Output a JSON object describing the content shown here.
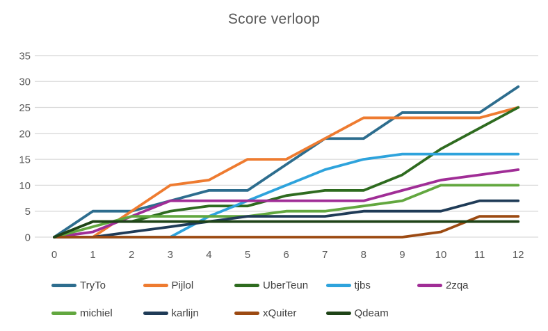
{
  "title": "Score verloop",
  "ui_colors": {
    "title_text": "#595959",
    "axis_text": "#595959",
    "legend_text": "#404040",
    "gridline": "#D9D9D9",
    "background": "#FFFFFF"
  },
  "chart_data": {
    "type": "line",
    "title": "Score verloop",
    "xlabel": "",
    "ylabel": "",
    "x": [
      0,
      1,
      2,
      3,
      4,
      5,
      6,
      7,
      8,
      9,
      10,
      11,
      12
    ],
    "x_tick_labels": [
      "0",
      "1",
      "2",
      "3",
      "4",
      "5",
      "6",
      "7",
      "8",
      "9",
      "10",
      "11",
      "12"
    ],
    "y_ticks": [
      0,
      5,
      10,
      15,
      20,
      25,
      30,
      35
    ],
    "y_tick_labels": [
      "0",
      "5",
      "10",
      "15",
      "20",
      "25",
      "30",
      "35"
    ],
    "ylim": [
      0,
      35
    ],
    "grid": "horizontal",
    "legend_position": "bottom",
    "series": [
      {
        "name": "TryTo",
        "color": "#2D6D8E",
        "values": [
          0,
          5,
          5,
          7,
          9,
          9,
          14,
          19,
          19,
          24,
          24,
          24,
          29
        ]
      },
      {
        "name": "Pijlol",
        "color": "#EE7B30",
        "values": [
          0,
          0,
          5,
          10,
          11,
          15,
          15,
          19,
          23,
          23,
          23,
          23,
          25
        ]
      },
      {
        "name": "UberTeun",
        "color": "#2E6B1F",
        "values": [
          0,
          3,
          3,
          5,
          6,
          6,
          8,
          9,
          9,
          12,
          17,
          21,
          25
        ]
      },
      {
        "name": "tjbs",
        "color": "#2EA3DC",
        "values": [
          0,
          0,
          0,
          0,
          4,
          7,
          10,
          13,
          15,
          16,
          16,
          16,
          16
        ]
      },
      {
        "name": "2zqa",
        "color": "#A02D96",
        "values": [
          0,
          1,
          4,
          7,
          7,
          7,
          7,
          7,
          7,
          9,
          11,
          12,
          13
        ]
      },
      {
        "name": "michiel",
        "color": "#62A73F",
        "values": [
          0,
          2,
          4,
          4,
          4,
          4,
          5,
          5,
          6,
          7,
          10,
          10,
          10
        ]
      },
      {
        "name": "karlijn",
        "color": "#1F3B57",
        "values": [
          0,
          0,
          1,
          2,
          3,
          4,
          4,
          4,
          5,
          5,
          5,
          7,
          7
        ]
      },
      {
        "name": "xQuiter",
        "color": "#9C4A12",
        "values": [
          0,
          0,
          0,
          0,
          0,
          0,
          0,
          0,
          0,
          0,
          1,
          4,
          4
        ]
      },
      {
        "name": "Qdeam",
        "color": "#1E4317",
        "values": [
          0,
          3,
          3,
          3,
          3,
          3,
          3,
          3,
          3,
          3,
          3,
          3,
          3
        ]
      }
    ],
    "legend_rows": [
      [
        "TryTo",
        "Pijlol",
        "UberTeun",
        "tjbs",
        "2zqa"
      ],
      [
        "michiel",
        "karlijn",
        "xQuiter",
        "Qdeam"
      ]
    ]
  }
}
